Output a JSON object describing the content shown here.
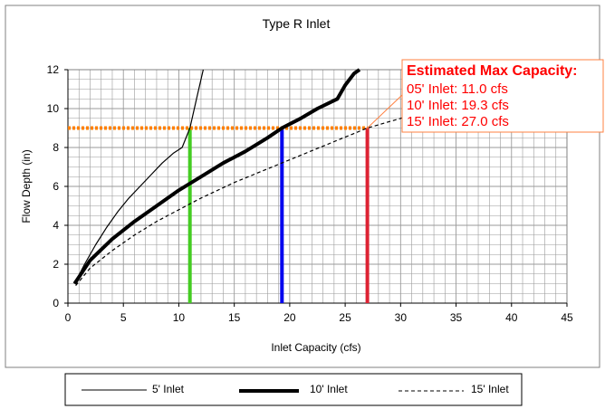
{
  "chart_data": {
    "type": "line",
    "title": "Type R Inlet",
    "xlabel": "Inlet Capacity (cfs)",
    "ylabel": "Flow Depth (in)",
    "xlim": [
      0,
      45
    ],
    "ylim": [
      0,
      12
    ],
    "x_ticks": [
      "0",
      "5",
      "10",
      "15",
      "20",
      "25",
      "30",
      "35",
      "40",
      "45"
    ],
    "y_ticks": [
      "0",
      "2",
      "4",
      "6",
      "8",
      "10",
      "12"
    ],
    "grid": true,
    "legend_position": "bottom",
    "series": [
      {
        "name": "5' Inlet",
        "style": "solid-thin",
        "x": [
          0.6,
          1.5,
          2.5,
          3.5,
          4.5,
          5.5,
          6.5,
          7.5,
          8.5,
          9.5,
          10.3,
          11.0,
          11.6,
          12.2
        ],
        "y": [
          1.0,
          2.0,
          3.0,
          3.9,
          4.7,
          5.4,
          6.0,
          6.6,
          7.2,
          7.7,
          8.0,
          9.0,
          10.5,
          12.0
        ]
      },
      {
        "name": "10' Inlet",
        "style": "solid-thick",
        "x": [
          0.6,
          2,
          4,
          6,
          8,
          10,
          12,
          14,
          16,
          18,
          19.3,
          21,
          22.5,
          24.3,
          25.0,
          25.8,
          26.3
        ],
        "y": [
          1.0,
          2.2,
          3.3,
          4.2,
          5.0,
          5.8,
          6.5,
          7.2,
          7.8,
          8.5,
          9.0,
          9.5,
          10.0,
          10.5,
          11.2,
          11.8,
          12.0
        ]
      },
      {
        "name": "15' Inlet",
        "style": "dashed",
        "x": [
          0.7,
          2,
          4,
          6,
          8,
          10,
          12,
          15,
          18,
          21,
          24,
          27,
          30,
          33
        ],
        "y": [
          0.9,
          1.8,
          2.7,
          3.5,
          4.2,
          4.8,
          5.4,
          6.2,
          6.9,
          7.6,
          8.3,
          9.0,
          9.5,
          10.0
        ]
      }
    ],
    "reference_line": {
      "y": 9.0,
      "x_start": 0,
      "x_end": 27.0,
      "color": "#ff8000"
    },
    "capacity_markers": [
      {
        "x": 11.0,
        "color": "#44cc22"
      },
      {
        "x": 19.3,
        "color": "#0000ee"
      },
      {
        "x": 27.0,
        "color": "#dd2233"
      }
    ],
    "annotation": {
      "title": "Estimated Max Capacity:",
      "lines": [
        "05' Inlet: 11.0 cfs",
        "10' Inlet: 19.3 cfs",
        "15' Inlet: 27.0 cfs"
      ],
      "color": "#ff0000",
      "points_to": {
        "x": 27.0,
        "y": 9.0
      }
    }
  },
  "colors": {
    "plot_background": "#ffffff",
    "grid": "#9a9a9a",
    "frame": "#808080",
    "annotation_border": "#ff8040"
  }
}
